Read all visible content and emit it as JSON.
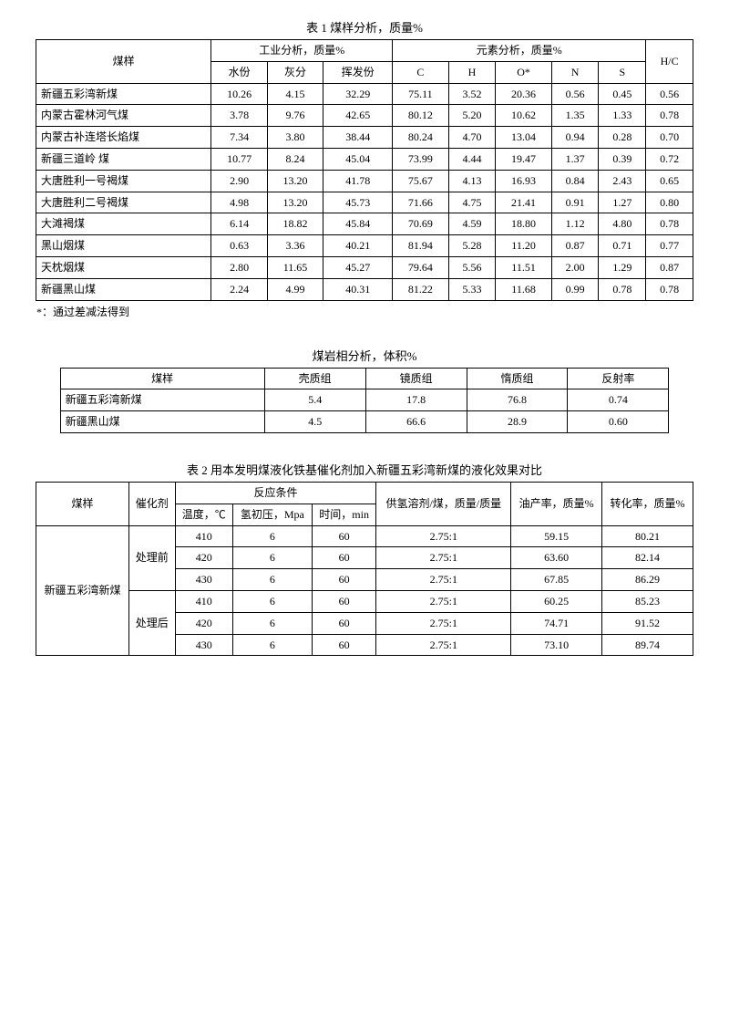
{
  "table1": {
    "caption": "表 1 煤样分析，质量%",
    "headers": {
      "coal": "煤样",
      "industrial": "工业分析，质量%",
      "elemental": "元素分析，质量%",
      "hc": "H/C",
      "moisture": "水份",
      "ash": "灰分",
      "volatile": "挥发份",
      "c": "C",
      "h": "H",
      "o": "O*",
      "n": "N",
      "s": "S"
    },
    "rows": [
      {
        "name": "新疆五彩湾新煤",
        "m": "10.26",
        "a": "4.15",
        "v": "32.29",
        "c": "75.11",
        "h": "3.52",
        "o": "20.36",
        "n": "0.56",
        "s": "0.45",
        "hc": "0.56"
      },
      {
        "name": "内蒙古霍林河气煤",
        "m": "3.78",
        "a": "9.76",
        "v": "42.65",
        "c": "80.12",
        "h": "5.20",
        "o": "10.62",
        "n": "1.35",
        "s": "1.33",
        "hc": "0.78"
      },
      {
        "name": "内蒙古补连塔长焰煤",
        "m": "7.34",
        "a": "3.80",
        "v": "38.44",
        "c": "80.24",
        "h": "4.70",
        "o": "13.04",
        "n": "0.94",
        "s": "0.28",
        "hc": "0.70"
      },
      {
        "name": "新疆三道岭 煤",
        "m": "10.77",
        "a": "8.24",
        "v": "45.04",
        "c": "73.99",
        "h": "4.44",
        "o": "19.47",
        "n": "1.37",
        "s": "0.39",
        "hc": "0.72"
      },
      {
        "name": "大唐胜利一号褐煤",
        "m": "2.90",
        "a": "13.20",
        "v": "41.78",
        "c": "75.67",
        "h": "4.13",
        "o": "16.93",
        "n": "0.84",
        "s": "2.43",
        "hc": "0.65"
      },
      {
        "name": "大唐胜利二号褐煤",
        "m": "4.98",
        "a": "13.20",
        "v": "45.73",
        "c": "71.66",
        "h": "4.75",
        "o": "21.41",
        "n": "0.91",
        "s": "1.27",
        "hc": "0.80"
      },
      {
        "name": "大滩褐煤",
        "m": "6.14",
        "a": "18.82",
        "v": "45.84",
        "c": "70.69",
        "h": "4.59",
        "o": "18.80",
        "n": "1.12",
        "s": "4.80",
        "hc": "0.78"
      },
      {
        "name": "黑山烟煤",
        "m": "0.63",
        "a": "3.36",
        "v": "40.21",
        "c": "81.94",
        "h": "5.28",
        "o": "11.20",
        "n": "0.87",
        "s": "0.71",
        "hc": "0.77"
      },
      {
        "name": "天枕烟煤",
        "m": "2.80",
        "a": "11.65",
        "v": "45.27",
        "c": "79.64",
        "h": "5.56",
        "o": "11.51",
        "n": "2.00",
        "s": "1.29",
        "hc": "0.87"
      },
      {
        "name": "新疆黑山煤",
        "m": "2.24",
        "a": "4.99",
        "v": "40.31",
        "c": "81.22",
        "h": "5.33",
        "o": "11.68",
        "n": "0.99",
        "s": "0.78",
        "hc": "0.78"
      }
    ],
    "footnote": "*：通过差减法得到"
  },
  "table_mid": {
    "caption": "煤岩相分析，体积%",
    "headers": {
      "coal": "煤样",
      "shell": "壳质组",
      "vitrinite": "镜质组",
      "inertinite": "惰质组",
      "reflectance": "反射率"
    },
    "rows": [
      {
        "name": "新疆五彩湾新煤",
        "shell": "5.4",
        "vit": "17.8",
        "inert": "76.8",
        "ref": "0.74"
      },
      {
        "name": "新疆黑山煤",
        "shell": "4.5",
        "vit": "66.6",
        "inert": "28.9",
        "ref": "0.60"
      }
    ]
  },
  "table2": {
    "caption": "表 2    用本发明煤液化铁基催化剂加入新疆五彩湾新煤的液化效果对比",
    "headers": {
      "coal": "煤样",
      "catalyst": "催化剂",
      "conditions": "反应条件",
      "ratio": "供氢溶剂/煤，质量/质量",
      "oilYield": "油产率，质量%",
      "conversion": "转化率，质量%",
      "temp": "温度，℃",
      "pressure": "氢初压，Mpa",
      "time": "时间，min"
    },
    "coal_name": "新疆五彩湾新煤",
    "rows": [
      {
        "cat": "处理前",
        "t": "410",
        "p": "6",
        "time": "60",
        "ratio": "2.75:1",
        "oil": "59.15",
        "conv": "80.21"
      },
      {
        "cat": "",
        "t": "420",
        "p": "6",
        "time": "60",
        "ratio": "2.75:1",
        "oil": "63.60",
        "conv": "82.14"
      },
      {
        "cat": "",
        "t": "430",
        "p": "6",
        "time": "60",
        "ratio": "2.75:1",
        "oil": "67.85",
        "conv": "86.29"
      },
      {
        "cat": "处理后",
        "t": "410",
        "p": "6",
        "time": "60",
        "ratio": "2.75:1",
        "oil": "60.25",
        "conv": "85.23"
      },
      {
        "cat": "",
        "t": "420",
        "p": "6",
        "time": "60",
        "ratio": "2.75:1",
        "oil": "74.71",
        "conv": "91.52"
      },
      {
        "cat": "",
        "t": "430",
        "p": "6",
        "time": "60",
        "ratio": "2.75:1",
        "oil": "73.10",
        "conv": "89.74"
      }
    ]
  }
}
